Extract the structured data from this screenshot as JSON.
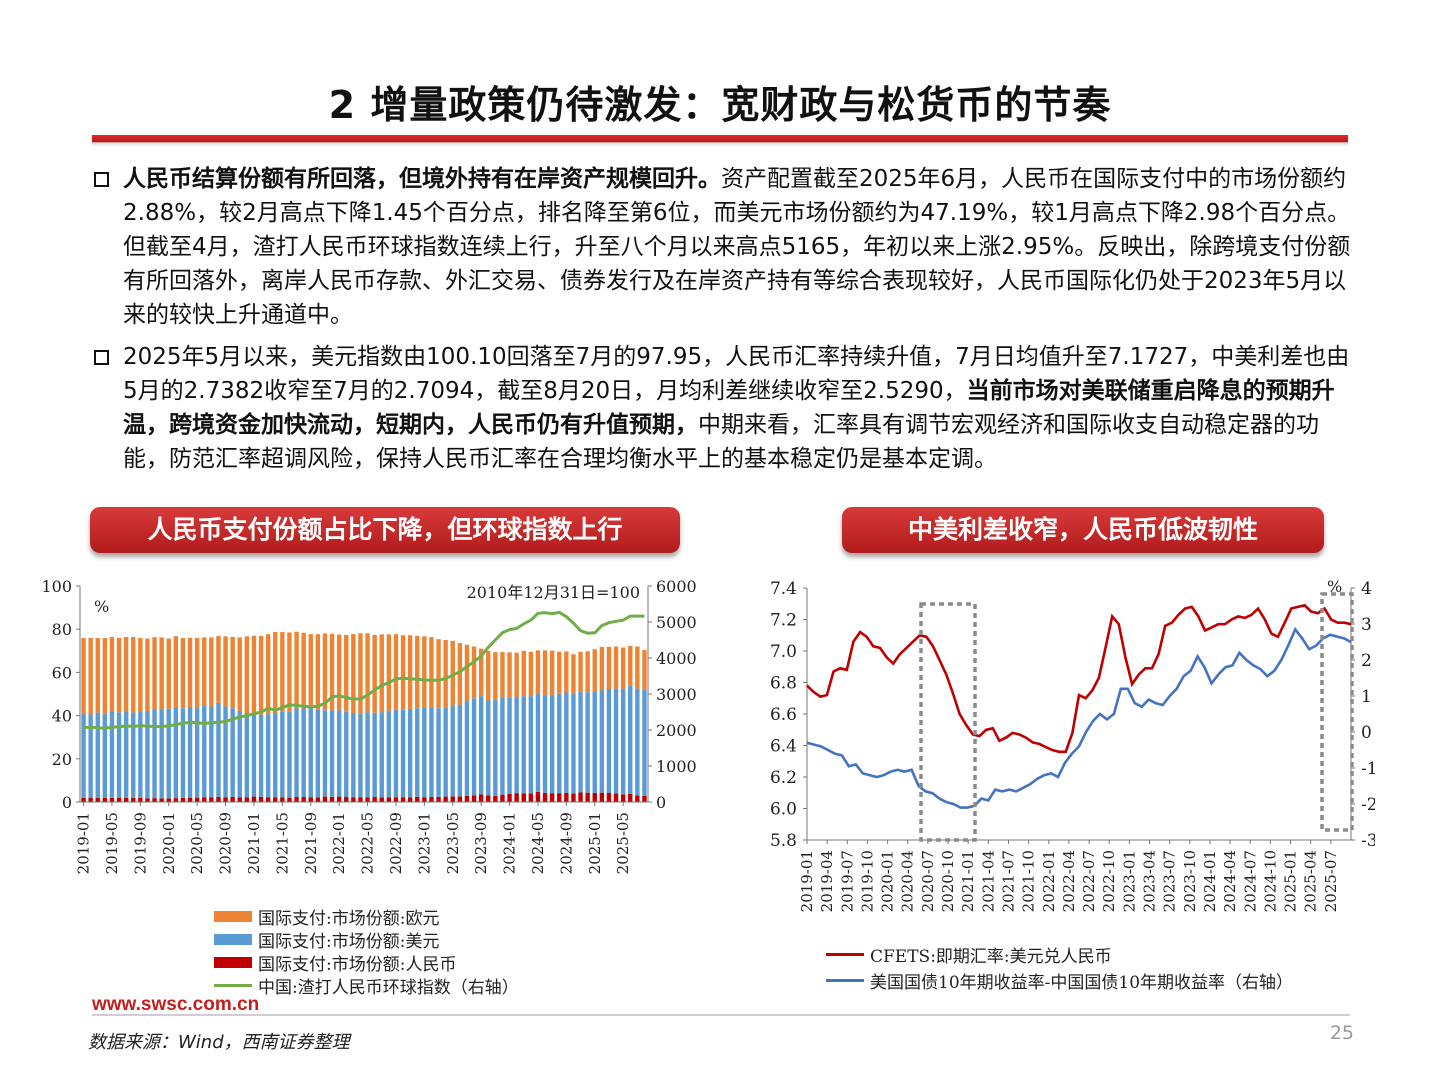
{
  "title": "2 增量政策仍待激发：宽财政与松货币的节奏",
  "bullets": [
    {
      "bold": "人民币结算份额有所回落，但境外持有在岸资产规模回升。",
      "text": "资产配置截至2025年6月，人民币在国际支付中的市场份额约2.88%，较2月高点下降1.45个百分点，排名降至第6位，而美元市场份额约为47.19%，较1月高点下降2.98个百分点。但截至4月，渣打人民币环球指数连续上行，升至八个月以来高点5165，年初以来上涨2.95%。反映出，除跨境支付份额有所回落外，离岸人民币存款、外汇交易、债券发行及在岸资产持有等综合表现较好，人民币国际化仍处于2023年5月以来的较快上升通道中。"
    },
    {
      "text1": "2025年5月以来，美元指数由100.10回落至7月的97.95，人民币汇率持续升值，7月日均值升至7.1727，中美利差也由5月的2.7382收窄至7月的2.7094，截至8月20日，月均利差继续收窄至2.5290，",
      "bold": "当前市场对美联储重启降息的预期升温，跨境资金加快流动，短期内，人民币仍有升值预期，",
      "text2": "中期来看，汇率具有调节宏观经济和国际收支自动稳定器的功能，防范汇率超调风险，保持人民币汇率在合理均衡水平上的基本稳定仍是基本定调。"
    }
  ],
  "panels": {
    "left_title": "人民币支付份额占比下降，但环球指数上行",
    "right_title": "中美利差收窄，人民币低波韧性"
  },
  "colors": {
    "eur": "#ee8433",
    "usd": "#5b9bd5",
    "cny": "#c00000",
    "index": "#70ad47",
    "cfets": "#c00000",
    "spread": "#4472c4",
    "accent": "#c41e1e"
  },
  "chart_data": [
    {
      "type": "bar",
      "stacked": true,
      "left_unit": "%",
      "annotation": "2010年12月31日=100",
      "ylim": [
        0,
        100
      ],
      "y2lim": [
        0,
        6000
      ],
      "yticks": [
        "0",
        "20",
        "40",
        "60",
        "80",
        "100"
      ],
      "y2ticks": [
        "0",
        "1000",
        "2000",
        "3000",
        "4000",
        "5000",
        "6000"
      ],
      "xticks": [
        "2019-01",
        "2019-05",
        "2019-09",
        "2020-01",
        "2020-05",
        "2020-09",
        "2021-01",
        "2021-05",
        "2021-09",
        "2022-01",
        "2022-05",
        "2022-09",
        "2023-01",
        "2023-05",
        "2023-09",
        "2024-01",
        "2024-05",
        "2024-09",
        "2025-01",
        "2025-05"
      ],
      "legend": [
        "国际支付:市场份额:欧元",
        "国际支付:市场份额:美元",
        "国际支付:市场份额:人民币",
        "中国:渣打人民币环球指数（右轴）"
      ],
      "legend_position": "bottom-left",
      "series": [
        {
          "name": "国际支付:市场份额:人民币",
          "values": [
            1.9,
            2.0,
            1.9,
            1.9,
            1.9,
            2.0,
            1.9,
            1.9,
            1.9,
            1.7,
            1.8,
            1.7,
            1.7,
            1.8,
            1.9,
            2.0,
            2.0,
            2.2,
            2.2,
            2.4,
            2.2,
            2.4,
            2.2,
            2.2,
            2.5,
            2.4,
            2.2,
            2.2,
            2.2,
            2.0,
            2.3,
            2.3,
            2.2,
            2.2,
            2.5,
            2.4,
            2.5,
            2.3,
            2.2,
            2.1,
            2.1,
            2.3,
            2.1,
            2.1,
            2.2,
            2.2,
            2.2,
            2.4,
            2.2,
            2.3,
            2.4,
            2.5,
            2.6,
            2.6,
            2.8,
            3.0,
            3.5,
            3.0,
            2.9,
            3.4,
            3.8,
            4.1,
            4.0,
            4.0,
            4.7,
            4.2,
            4.1,
            4.1,
            4.2,
            3.9,
            4.5,
            4.3,
            4.2,
            4.3,
            4.3,
            4.0,
            3.5,
            3.8,
            3.0,
            2.9
          ]
        },
        {
          "name": "国际支付:市场份额:美元",
          "values": [
            39.0,
            38.5,
            39.5,
            39.0,
            40.0,
            39.5,
            40.0,
            39.5,
            40.0,
            40.5,
            41.0,
            41.5,
            41.5,
            42.0,
            41.5,
            42.0,
            41.5,
            42.5,
            42.0,
            43.5,
            42.0,
            41.0,
            40.0,
            39.0,
            38.5,
            38.0,
            38.5,
            39.0,
            39.5,
            40.0,
            41.0,
            41.0,
            41.5,
            40.5,
            40.0,
            40.0,
            40.0,
            39.5,
            39.0,
            39.0,
            39.5,
            39.0,
            39.5,
            40.0,
            40.5,
            40.5,
            41.0,
            41.0,
            41.5,
            41.5,
            41.0,
            41.0,
            42.0,
            42.5,
            44.0,
            45.0,
            45.5,
            44.0,
            44.5,
            45.0,
            44.5,
            44.5,
            45.0,
            45.0,
            45.5,
            45.5,
            45.5,
            46.0,
            46.5,
            46.5,
            46.5,
            46.5,
            47.0,
            47.5,
            48.0,
            48.5,
            49.0,
            50.0,
            49.5,
            49.0
          ]
        },
        {
          "name": "国际支付:市场份额:欧元",
          "values": [
            35.0,
            35.5,
            34.5,
            35.0,
            34.5,
            34.5,
            34.5,
            35.0,
            34.0,
            33.5,
            33.5,
            33.0,
            32.5,
            33.0,
            32.5,
            32.0,
            32.5,
            31.5,
            32.0,
            31.0,
            32.5,
            33.0,
            34.0,
            35.5,
            36.0,
            36.5,
            37.0,
            37.5,
            37.0,
            36.5,
            35.5,
            35.0,
            34.0,
            35.0,
            35.5,
            35.5,
            35.0,
            35.5,
            36.5,
            37.0,
            36.5,
            36.0,
            36.0,
            35.5,
            35.0,
            34.5,
            34.0,
            33.5,
            33.0,
            32.5,
            32.0,
            31.5,
            30.0,
            28.5,
            26.0,
            24.0,
            22.0,
            23.0,
            22.0,
            21.0,
            21.0,
            20.5,
            21.0,
            20.5,
            20.0,
            20.5,
            20.5,
            19.5,
            19.0,
            18.0,
            18.5,
            19.0,
            19.5,
            20.0,
            19.5,
            19.5,
            19.0,
            18.5,
            19.5,
            18.5
          ]
        },
        {
          "name": "中国:渣打人民币环球指数（右轴）",
          "values": [
            2070,
            2080,
            2060,
            2050,
            2080,
            2090,
            2110,
            2100,
            2120,
            2110,
            2090,
            2100,
            2110,
            2150,
            2190,
            2210,
            2200,
            2180,
            2200,
            2210,
            2240,
            2300,
            2360,
            2400,
            2450,
            2500,
            2600,
            2550,
            2620,
            2700,
            2680,
            2660,
            2640,
            2660,
            2740,
            2920,
            2950,
            2900,
            2860,
            2860,
            2970,
            3110,
            3240,
            3320,
            3420,
            3440,
            3420,
            3410,
            3390,
            3380,
            3380,
            3430,
            3520,
            3620,
            3760,
            3900,
            4050,
            4300,
            4500,
            4700,
            4790,
            4820,
            4950,
            5050,
            5240,
            5260,
            5230,
            5270,
            5150,
            4970,
            4760,
            4690,
            4700,
            4900,
            4980,
            5020,
            5050,
            5165,
            5165,
            5165
          ]
        }
      ]
    },
    {
      "type": "line",
      "right_unit": "%",
      "ylim": [
        5.8,
        7.4
      ],
      "y2lim": [
        -3,
        4
      ],
      "yticks": [
        "5.8",
        "6.0",
        "6.2",
        "6.4",
        "6.6",
        "6.8",
        "7.0",
        "7.2",
        "7.4"
      ],
      "y2ticks": [
        "-3",
        "-2",
        "-1",
        "0",
        "1",
        "2",
        "3",
        "4"
      ],
      "xticks": [
        "2019-01",
        "2019-04",
        "2019-07",
        "2019-10",
        "2020-01",
        "2020-04",
        "2020-07",
        "2020-10",
        "2021-01",
        "2021-04",
        "2021-07",
        "2021-10",
        "2022-01",
        "2022-04",
        "2022-07",
        "2022-10",
        "2023-01",
        "2023-04",
        "2023-07",
        "2023-10",
        "2024-01",
        "2024-04",
        "2024-07",
        "2024-10",
        "2025-01",
        "2025-04",
        "2025-07"
      ],
      "legend": [
        "CFETS:即期汇率:美元兑人民币",
        "美国国债10年期收益率-中国国债10年期收益率（右轴）"
      ],
      "legend_position": "bottom",
      "series": [
        {
          "name": "CFETS:即期汇率:美元兑人民币",
          "values": [
            6.78,
            6.74,
            6.71,
            6.72,
            6.87,
            6.89,
            6.88,
            7.06,
            7.12,
            7.09,
            7.03,
            7.02,
            6.96,
            6.92,
            6.98,
            7.02,
            7.06,
            7.1,
            7.09,
            7.03,
            6.94,
            6.85,
            6.73,
            6.6,
            6.53,
            6.47,
            6.46,
            6.5,
            6.51,
            6.43,
            6.45,
            6.48,
            6.47,
            6.45,
            6.42,
            6.41,
            6.39,
            6.37,
            6.36,
            6.36,
            6.48,
            6.72,
            6.7,
            6.75,
            6.83,
            7.02,
            7.22,
            7.17,
            6.96,
            6.79,
            6.85,
            6.89,
            6.89,
            6.98,
            7.16,
            7.18,
            7.23,
            7.27,
            7.28,
            7.22,
            7.13,
            7.15,
            7.17,
            7.17,
            7.2,
            7.22,
            7.21,
            7.23,
            7.27,
            7.2,
            7.11,
            7.09,
            7.18,
            7.27,
            7.28,
            7.29,
            7.25,
            7.24,
            7.27,
            7.2,
            7.18,
            7.18,
            7.17
          ]
        },
        {
          "name": "美国国债10年期收益率-中国国债10年期收益率（右轴）",
          "values": [
            -0.3,
            -0.35,
            -0.4,
            -0.5,
            -0.6,
            -0.65,
            -0.95,
            -0.9,
            -1.15,
            -1.2,
            -1.25,
            -1.2,
            -1.1,
            -1.05,
            -1.1,
            -1.05,
            -1.5,
            -1.65,
            -1.7,
            -1.85,
            -1.95,
            -2.0,
            -2.1,
            -2.1,
            -2.05,
            -1.85,
            -1.9,
            -1.6,
            -1.65,
            -1.6,
            -1.65,
            -1.55,
            -1.45,
            -1.3,
            -1.2,
            -1.15,
            -1.25,
            -0.85,
            -0.6,
            -0.4,
            0.0,
            0.3,
            0.5,
            0.35,
            0.5,
            1.2,
            1.2,
            0.8,
            0.7,
            0.9,
            0.8,
            0.75,
            1.0,
            1.2,
            1.55,
            1.7,
            2.1,
            1.8,
            1.35,
            1.6,
            1.8,
            1.85,
            2.2,
            2.0,
            1.85,
            1.75,
            1.55,
            1.7,
            2.0,
            2.4,
            2.85,
            2.6,
            2.3,
            2.4,
            2.6,
            2.7,
            2.65,
            2.6,
            2.5
          ]
        }
      ]
    }
  ],
  "footer": {
    "watermark": "www.swsc.com.cn",
    "source": "数据来源：Wind，西南证券整理",
    "page": "25"
  }
}
